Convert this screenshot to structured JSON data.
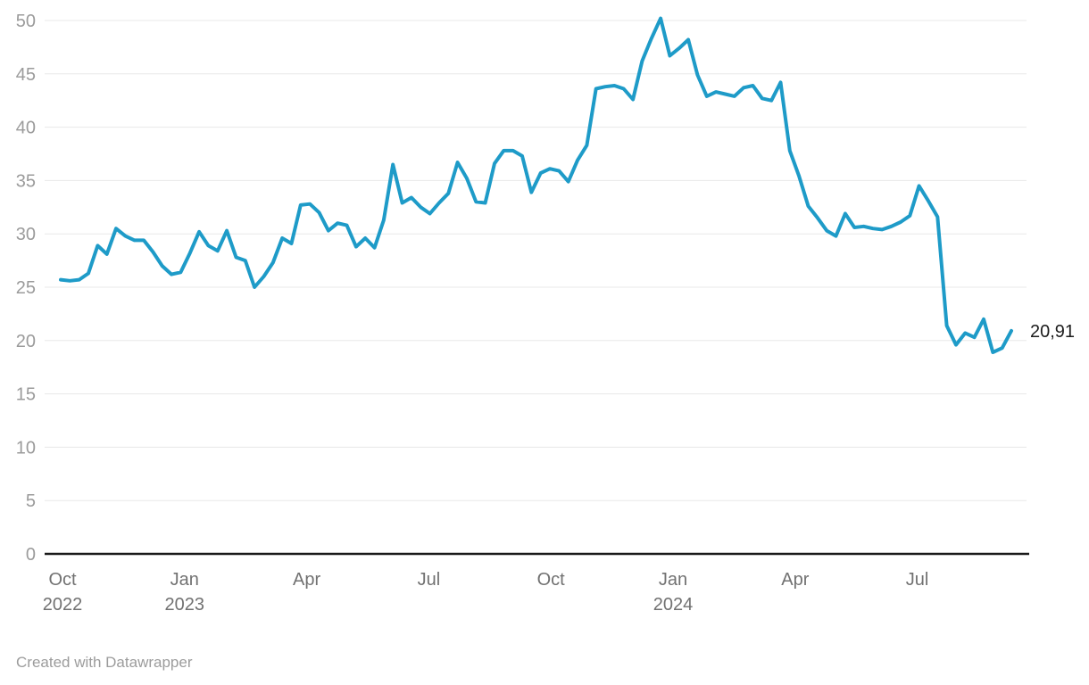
{
  "chart_data": {
    "type": "line",
    "title": "",
    "grid": "horizontal",
    "legend": "none",
    "end_label": "20,91",
    "last_value": 20.91,
    "x_axis": {
      "start": "2022-09-30",
      "end": "2024-09-13",
      "frequency": "weekly",
      "ticks": [
        {
          "label": "Oct",
          "year": "2022",
          "month_offset": 0
        },
        {
          "label": "Jan",
          "year": "2023",
          "month_offset": 3
        },
        {
          "label": "Apr",
          "year": "",
          "month_offset": 6
        },
        {
          "label": "Jul",
          "year": "",
          "month_offset": 9
        },
        {
          "label": "Oct",
          "year": "",
          "month_offset": 12
        },
        {
          "label": "Jan",
          "year": "2024",
          "month_offset": 15
        },
        {
          "label": "Apr",
          "year": "",
          "month_offset": 18
        },
        {
          "label": "Jul",
          "year": "",
          "month_offset": 21
        }
      ]
    },
    "y_axis": {
      "min": 0,
      "max": 50,
      "tick_step": 5,
      "ticks": [
        0,
        5,
        10,
        15,
        20,
        25,
        30,
        35,
        40,
        45,
        50
      ]
    },
    "series": [
      {
        "name": "value",
        "values": [
          25.7,
          25.6,
          25.7,
          26.3,
          28.9,
          28.1,
          30.5,
          29.8,
          29.4,
          29.4,
          28.3,
          27.0,
          26.2,
          26.4,
          28.2,
          30.2,
          28.9,
          28.4,
          30.3,
          27.8,
          27.5,
          25.0,
          26.0,
          27.3,
          29.6,
          29.1,
          32.7,
          32.8,
          32.0,
          30.3,
          31.0,
          30.8,
          28.8,
          29.6,
          28.7,
          31.3,
          36.5,
          32.9,
          33.4,
          32.5,
          31.9,
          32.9,
          33.8,
          36.7,
          35.2,
          33.0,
          32.9,
          36.6,
          37.8,
          37.8,
          37.3,
          33.9,
          35.7,
          36.1,
          35.9,
          34.9,
          36.9,
          38.3,
          43.6,
          43.8,
          43.9,
          43.6,
          42.6,
          46.2,
          48.3,
          50.2,
          46.7,
          47.4,
          48.2,
          44.9,
          42.9,
          43.3,
          43.1,
          42.9,
          43.7,
          43.9,
          42.7,
          42.5,
          44.2,
          37.8,
          35.4,
          32.6,
          31.5,
          30.3,
          29.8,
          31.9,
          30.6,
          30.7,
          30.5,
          30.4,
          30.7,
          31.1,
          31.7,
          34.5,
          33.1,
          31.6,
          21.4,
          19.6,
          20.7,
          20.3,
          22.0,
          18.9,
          19.3,
          20.91
        ]
      }
    ],
    "colors": {
      "line": "#1E9BC8",
      "grid": "#e8e8e8",
      "axis": "#1a1a1a",
      "y_tick_text": "#9b9b9b",
      "x_tick_text": "#717171",
      "end_label_text": "#1d1d1d",
      "credit_text": "#9c9c9c",
      "background": "#ffffff"
    }
  },
  "footer": {
    "credit": "Created with Datawrapper"
  }
}
